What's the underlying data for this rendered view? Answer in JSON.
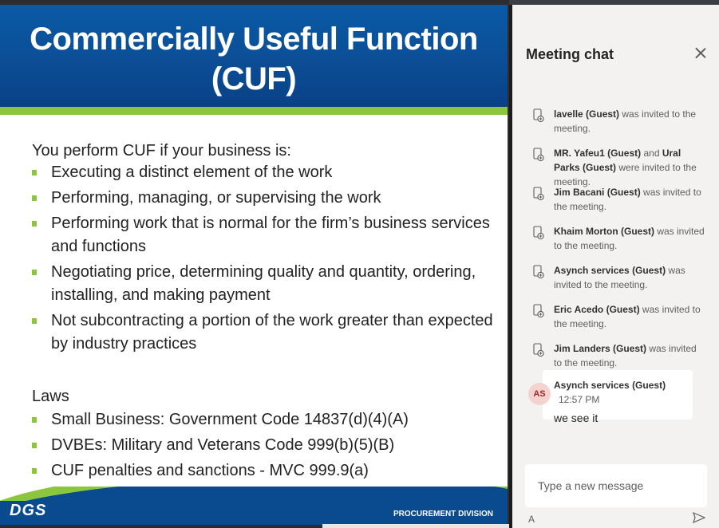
{
  "slide": {
    "title_line1": "Commercially Useful Function",
    "title_line2": "(CUF)",
    "intro": "You perform CUF if your business is:",
    "bullets": [
      "Executing a distinct element of the work",
      "Performing, managing, or supervising the work",
      "Performing work that is normal for the firm’s business services and functions",
      "Negotiating price, determining quality and quantity, ordering, installing, and making payment",
      "Not subcontracting a portion of the work greater than expected by industry practices"
    ],
    "laws_heading": "Laws",
    "laws": [
      "Small Business: Government Code 14837(d)(4)(A)",
      "DVBEs: Military and Veterans Code 999(b)(5)(B)",
      "CUF penalties and sanctions - MVC 999.9(a)"
    ],
    "footer_logo": "DGS",
    "footer_division": "PROCUREMENT DIVISION"
  },
  "chat": {
    "title": "Meeting chat",
    "events": [
      {
        "names": [
          "lavelle (Guest)"
        ],
        "joiner": "",
        "suffix": " was invited to the meeting."
      },
      {
        "names": [
          "MR. Yafeu1 (Guest)",
          "Ural Parks (Guest)"
        ],
        "joiner": " and ",
        "suffix": " were invited to the meeting."
      },
      {
        "names": [
          "Jim Bacani (Guest)"
        ],
        "joiner": "",
        "suffix": " was invited to the meeting."
      },
      {
        "names": [
          "Khaim Morton (Guest)"
        ],
        "joiner": "",
        "suffix": " was invited to the meeting."
      },
      {
        "names": [
          "Asynch services (Guest)"
        ],
        "joiner": "",
        "suffix": " was invited to the meeting."
      },
      {
        "names": [
          "Eric Acedo (Guest)"
        ],
        "joiner": "",
        "suffix": " was invited to the meeting."
      },
      {
        "names": [
          "Jim Landers (Guest)"
        ],
        "joiner": "",
        "suffix": " was invited to the meeting."
      }
    ],
    "message": {
      "avatar_initials": "AS",
      "author": "Asynch services (Guest)",
      "time": "12:57 PM",
      "text": "we see it"
    },
    "composer_placeholder": "Type a new message",
    "format_label": "A"
  },
  "colors": {
    "slide_header": "#0b4f98",
    "accent_green": "#8cc63f",
    "chat_bg": "#f3f2f1",
    "avatar_bg": "#f4d3cf"
  }
}
